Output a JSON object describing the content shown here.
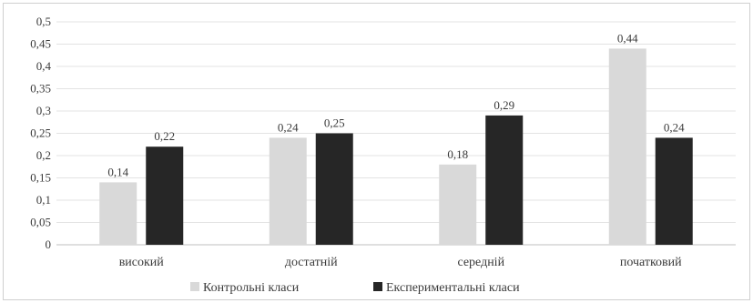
{
  "chart_data": {
    "type": "bar",
    "categories": [
      "високий",
      "достатній",
      "середній",
      "початковий"
    ],
    "series": [
      {
        "name": "Контрольні класи",
        "color": "#d9d9d9",
        "values": [
          0.14,
          0.24,
          0.18,
          0.44
        ],
        "labels": [
          "0,14",
          "0,24",
          "0,18",
          "0,44"
        ]
      },
      {
        "name": "Експериментальні класи",
        "color": "#262626",
        "values": [
          0.22,
          0.25,
          0.29,
          0.24
        ],
        "labels": [
          "0,22",
          "0,25",
          "0,29",
          "0,24"
        ]
      }
    ],
    "yticks": [
      0,
      0.05,
      0.1,
      0.15,
      0.2,
      0.25,
      0.3,
      0.35,
      0.4,
      0.45,
      0.5
    ],
    "ytick_labels": [
      "0",
      "0,05",
      "0,1",
      "0,15",
      "0,2",
      "0,25",
      "0,3",
      "0,35",
      "0,4",
      "0,45",
      "0,5"
    ],
    "ylim": [
      0,
      0.5
    ],
    "grid": true,
    "legend_position": "bottom"
  }
}
